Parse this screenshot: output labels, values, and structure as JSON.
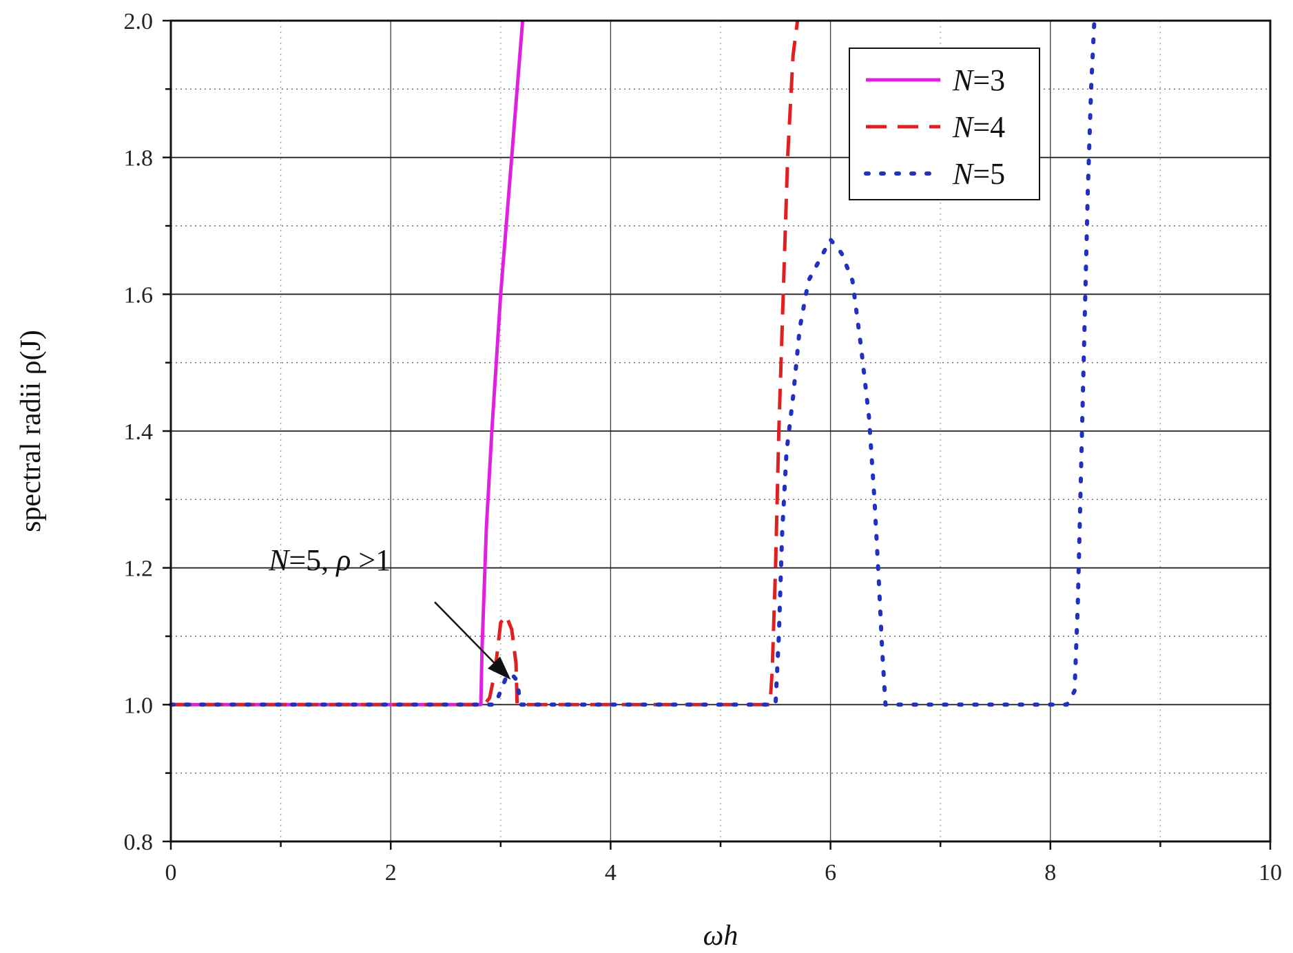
{
  "chart_data": {
    "type": "line",
    "xlabel": "ωh",
    "ylabel": "spectral radii ρ(J)",
    "xlim": [
      0,
      10
    ],
    "ylim": [
      0.8,
      2.0
    ],
    "x_ticks": [
      "0",
      "2",
      "4",
      "6",
      "8",
      "10"
    ],
    "y_ticks": [
      "0.8",
      "1.0",
      "1.2",
      "1.4",
      "1.6",
      "1.8",
      "2.0"
    ],
    "grid": true,
    "legend_position": "top-right",
    "series": [
      {
        "name": "N=3",
        "color": "#e020e0",
        "style": "solid",
        "points": [
          [
            0,
            1.0
          ],
          [
            2.82,
            1.0
          ],
          [
            2.83,
            1.08
          ],
          [
            2.87,
            1.26
          ],
          [
            2.92,
            1.4
          ],
          [
            2.96,
            1.5
          ],
          [
            3.0,
            1.6
          ],
          [
            3.05,
            1.7
          ],
          [
            3.1,
            1.8
          ],
          [
            3.15,
            1.9
          ],
          [
            3.2,
            2.0
          ]
        ]
      },
      {
        "name": "N=4",
        "color": "#e02020",
        "style": "dashed",
        "points": [
          [
            0,
            1.0
          ],
          [
            2.85,
            1.0
          ],
          [
            2.9,
            1.01
          ],
          [
            2.95,
            1.05
          ],
          [
            3.0,
            1.12
          ],
          [
            3.05,
            1.13
          ],
          [
            3.1,
            1.11
          ],
          [
            3.14,
            1.06
          ],
          [
            3.15,
            1.0
          ],
          [
            5.45,
            1.0
          ],
          [
            5.47,
            1.05
          ],
          [
            5.5,
            1.2
          ],
          [
            5.53,
            1.4
          ],
          [
            5.57,
            1.6
          ],
          [
            5.61,
            1.8
          ],
          [
            5.66,
            1.95
          ],
          [
            5.7,
            2.0
          ]
        ]
      },
      {
        "name": "N=5",
        "color": "#2030c0",
        "style": "dotted",
        "points": [
          [
            0,
            1.0
          ],
          [
            2.95,
            1.0
          ],
          [
            3.0,
            1.02
          ],
          [
            3.05,
            1.04
          ],
          [
            3.1,
            1.045
          ],
          [
            3.15,
            1.035
          ],
          [
            3.18,
            1.0
          ],
          [
            5.5,
            1.0
          ],
          [
            5.53,
            1.1
          ],
          [
            5.56,
            1.25
          ],
          [
            5.6,
            1.37
          ],
          [
            5.66,
            1.45
          ],
          [
            5.72,
            1.55
          ],
          [
            5.8,
            1.62
          ],
          [
            5.9,
            1.65
          ],
          [
            6.0,
            1.68
          ],
          [
            6.1,
            1.66
          ],
          [
            6.2,
            1.62
          ],
          [
            6.28,
            1.52
          ],
          [
            6.35,
            1.42
          ],
          [
            6.4,
            1.3
          ],
          [
            6.44,
            1.18
          ],
          [
            6.47,
            1.08
          ],
          [
            6.5,
            1.0
          ],
          [
            8.15,
            1.0
          ],
          [
            8.22,
            1.02
          ],
          [
            8.25,
            1.15
          ],
          [
            8.28,
            1.35
          ],
          [
            8.31,
            1.55
          ],
          [
            8.34,
            1.75
          ],
          [
            8.37,
            1.9
          ],
          [
            8.4,
            2.0
          ]
        ]
      }
    ],
    "annotation": {
      "text_n": "N",
      "text_rest": "=5, ",
      "text_rho": "ρ",
      "text_tail": " >1",
      "arrow_from": [
        2.4,
        1.15
      ],
      "arrow_to": [
        3.07,
        1.04
      ]
    }
  }
}
